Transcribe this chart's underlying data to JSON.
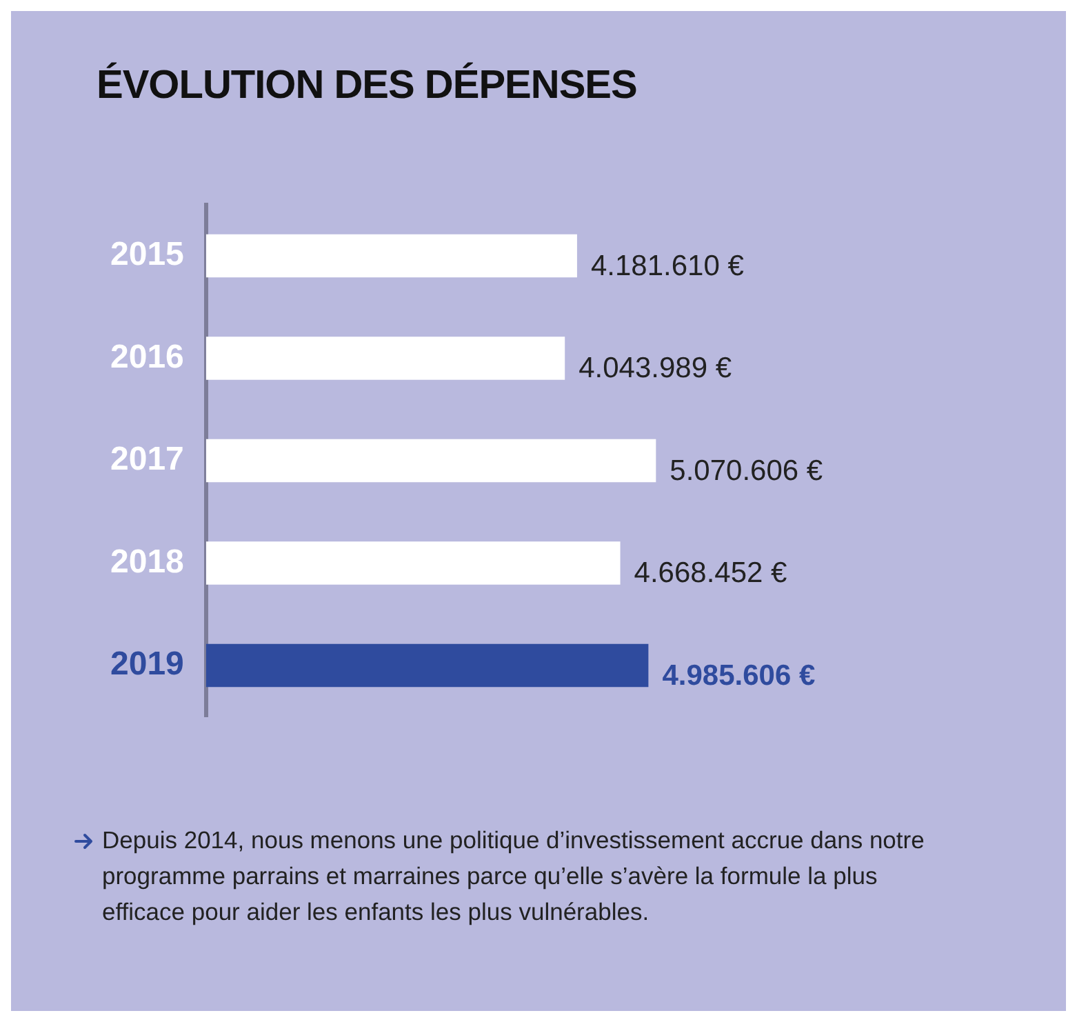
{
  "chart_data": {
    "type": "bar",
    "orientation": "horizontal",
    "title": "ÉVOLUTION DES DÉPENSES",
    "categories": [
      "2015",
      "2016",
      "2017",
      "2018",
      "2019"
    ],
    "values": [
      4181610,
      4043989,
      5070606,
      4668452,
      4985606
    ],
    "colors": [
      "#ffffff",
      "#ffffff",
      "#ffffff",
      "#ffffff",
      "#2f4b9e"
    ],
    "value_labels": [
      "4.181.610 €",
      "4.043.989 €",
      "5.070.606 €",
      "4.668.452 €",
      "4.985.606 €"
    ],
    "legend": false,
    "annotations": [
      "Depuis 2014, nous menons une politique d’investissement accrue dans notre programme parrains et marraines parce qu’elle s’avère la formule la plus efficace pour aider les enfants les plus vulnérables."
    ]
  }
}
